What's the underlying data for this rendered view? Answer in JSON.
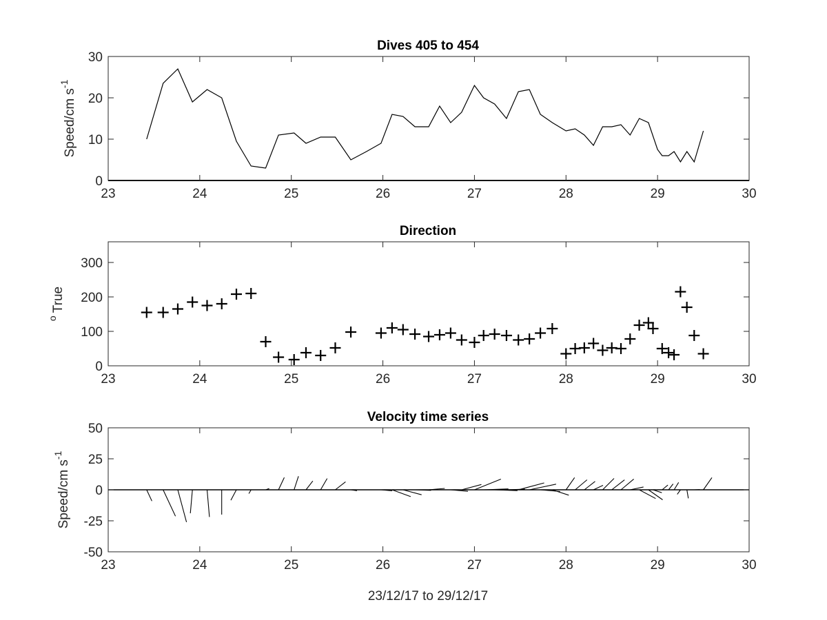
{
  "figure": {
    "xlabel": "23/12/17 to 29/12/17"
  },
  "chart_data": [
    {
      "type": "line",
      "title": "Dives 405 to 454",
      "xlabel": "",
      "ylabel": "Speed/cm s",
      "ylabel_superscript": "-1",
      "xlim": [
        23,
        30
      ],
      "ylim": [
        0,
        30
      ],
      "xticks": [
        "23",
        "24",
        "25",
        "26",
        "27",
        "28",
        "29",
        "30"
      ],
      "yticks": [
        "0",
        "10",
        "20",
        "30"
      ],
      "grid": false,
      "series": [
        {
          "color": "#000000",
          "x": [
            23.42,
            23.6,
            23.76,
            23.92,
            24.08,
            24.24,
            24.4,
            24.56,
            24.72,
            24.86,
            25.03,
            25.16,
            25.32,
            25.48,
            25.65,
            25.82,
            25.98,
            26.1,
            26.22,
            26.35,
            26.5,
            26.62,
            26.74,
            26.86,
            27.0,
            27.1,
            27.22,
            27.35,
            27.48,
            27.6,
            27.72,
            27.85,
            28.0,
            28.1,
            28.2,
            28.3,
            28.4,
            28.5,
            28.6,
            28.7,
            28.8,
            28.9,
            29.0,
            29.05,
            29.12,
            29.18,
            29.25,
            29.32,
            29.4,
            29.5
          ],
          "y": [
            10,
            23.5,
            27,
            19,
            22,
            20,
            9.5,
            3.5,
            3,
            11,
            11.5,
            9,
            10.5,
            10.5,
            5,
            7,
            9,
            16,
            15.5,
            13,
            13,
            18,
            14,
            16.5,
            23,
            20,
            18.5,
            15,
            21.5,
            22,
            16,
            14,
            12,
            12.5,
            11,
            8.5,
            13,
            13,
            13.5,
            11,
            15,
            14,
            7.5,
            6,
            6,
            7,
            4.5,
            7,
            4.5,
            12
          ]
        }
      ]
    },
    {
      "type": "scatter",
      "title": "Direction",
      "xlabel": "",
      "ylabel": "True",
      "ylabel_superscript": "o",
      "xlim": [
        23,
        30
      ],
      "ylim": [
        0,
        360
      ],
      "xticks": [
        "23",
        "24",
        "25",
        "26",
        "27",
        "28",
        "29",
        "30"
      ],
      "yticks": [
        "0",
        "100",
        "200",
        "300"
      ],
      "grid": false,
      "marker": "+",
      "series": [
        {
          "color": "#000000",
          "x": [
            23.42,
            23.6,
            23.76,
            23.92,
            24.08,
            24.24,
            24.4,
            24.56,
            24.72,
            24.86,
            25.03,
            25.16,
            25.32,
            25.48,
            25.65,
            25.98,
            26.1,
            26.22,
            26.35,
            26.5,
            26.62,
            26.74,
            26.86,
            27.0,
            27.1,
            27.22,
            27.35,
            27.48,
            27.6,
            27.72,
            27.85,
            28.0,
            28.1,
            28.2,
            28.3,
            28.4,
            28.5,
            28.6,
            28.7,
            28.8,
            28.9,
            28.95,
            29.05,
            29.12,
            29.18,
            29.25,
            29.32,
            29.4,
            29.5
          ],
          "y": [
            155,
            155,
            165,
            185,
            175,
            180,
            208,
            210,
            70,
            25,
            18,
            38,
            30,
            52,
            98,
            95,
            110,
            105,
            92,
            85,
            90,
            95,
            75,
            68,
            88,
            92,
            88,
            75,
            78,
            95,
            108,
            35,
            50,
            52,
            65,
            45,
            52,
            50,
            78,
            118,
            125,
            108,
            50,
            38,
            32,
            215,
            170,
            88,
            35
          ]
        }
      ]
    },
    {
      "type": "quiver",
      "title": "Velocity time series",
      "xlabel": "23/12/17 to 29/12/17",
      "ylabel": "Speed/cm s",
      "ylabel_superscript": "-1",
      "xlim": [
        23,
        30
      ],
      "ylim": [
        -50,
        50
      ],
      "xticks": [
        "23",
        "24",
        "25",
        "26",
        "27",
        "28",
        "29",
        "30"
      ],
      "yticks": [
        "-50",
        "-25",
        "0",
        "25",
        "50"
      ],
      "grid": false,
      "series": [
        {
          "color": "#000000",
          "x": [
            23.42,
            23.6,
            23.76,
            23.92,
            24.08,
            24.24,
            24.4,
            24.56,
            24.72,
            24.86,
            25.03,
            25.16,
            25.32,
            25.48,
            25.65,
            25.98,
            26.1,
            26.22,
            26.35,
            26.5,
            26.62,
            26.74,
            26.86,
            27.0,
            27.1,
            27.22,
            27.35,
            27.48,
            27.6,
            27.72,
            27.85,
            28.0,
            28.1,
            28.2,
            28.3,
            28.4,
            28.5,
            28.6,
            28.7,
            28.8,
            28.9,
            28.95,
            29.05,
            29.12,
            29.18,
            29.25,
            29.32,
            29.4,
            29.5
          ],
          "speed": [
            10,
            23.5,
            27,
            19,
            22,
            20,
            9.5,
            3.5,
            3,
            11,
            11.5,
            9,
            10.5,
            10.5,
            5,
            9,
            16,
            15.5,
            13,
            13,
            18,
            14,
            16.5,
            23,
            20,
            18.5,
            15,
            21.5,
            22,
            16,
            14,
            12,
            12.5,
            11,
            8.5,
            13,
            13,
            13.5,
            11,
            15,
            14,
            7.5,
            6,
            6,
            7,
            4.5,
            7,
            4.5,
            12
          ],
          "direction": [
            155,
            155,
            165,
            185,
            175,
            180,
            208,
            210,
            70,
            25,
            18,
            38,
            30,
            52,
            98,
            95,
            110,
            105,
            92,
            85,
            90,
            95,
            75,
            68,
            88,
            92,
            88,
            75,
            78,
            95,
            108,
            35,
            50,
            52,
            65,
            45,
            52,
            50,
            78,
            118,
            125,
            108,
            50,
            38,
            32,
            215,
            170,
            88,
            35
          ]
        }
      ]
    }
  ]
}
